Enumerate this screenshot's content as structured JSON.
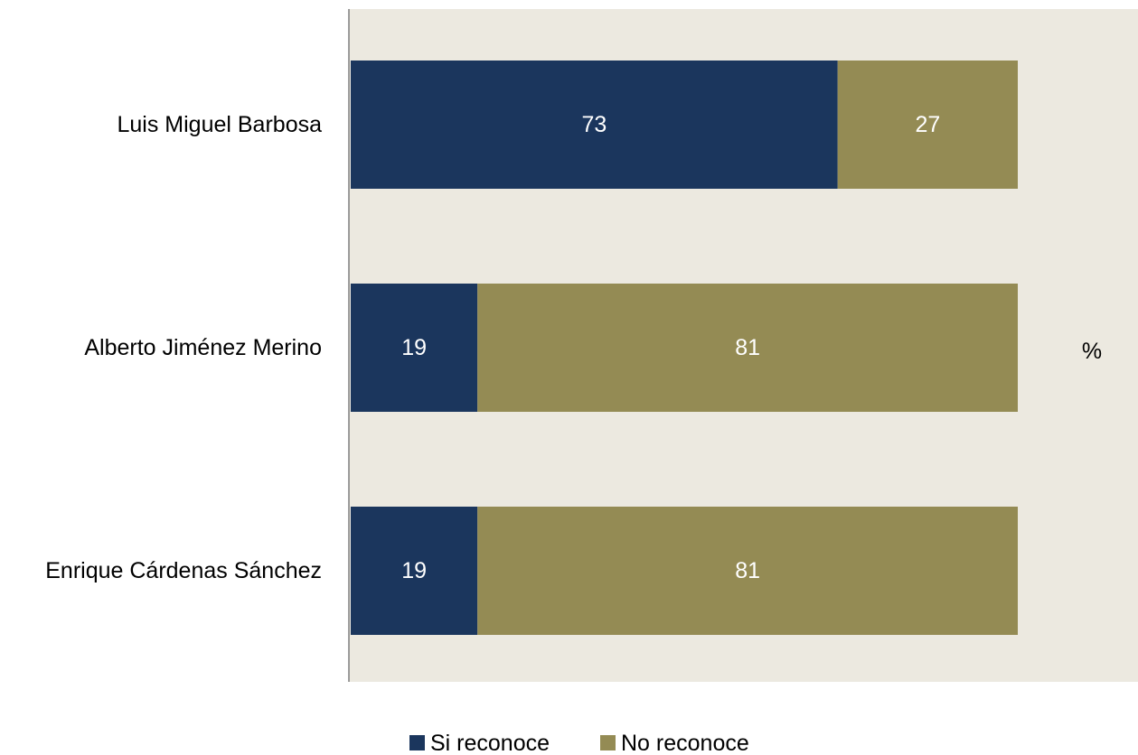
{
  "chart_data": {
    "type": "bar",
    "orientation": "horizontal",
    "stacked": true,
    "categories": [
      "Luis Miguel Barbosa",
      "Alberto Jiménez Merino",
      "Enrique Cárdenas Sánchez"
    ],
    "series": [
      {
        "name": "Si reconoce",
        "values": [
          73,
          19,
          19
        ],
        "color": "#1b365d"
      },
      {
        "name": "No reconoce",
        "values": [
          27,
          81,
          81
        ],
        "color": "#948b54"
      }
    ],
    "unit_label": "%",
    "xlim": [
      0,
      100
    ],
    "grid": false,
    "legend": "bottom",
    "plot_background": "#ece9e0"
  }
}
